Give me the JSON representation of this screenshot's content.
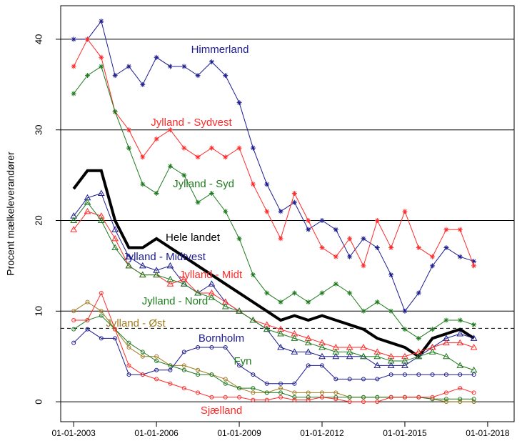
{
  "chart_data": {
    "type": "line",
    "y_label": "Procent mælkeleverandører",
    "x": [
      2003,
      2003.5,
      2004,
      2004.5,
      2005,
      2005.5,
      2006,
      2006.5,
      2007,
      2007.5,
      2008,
      2008.5,
      2009,
      2009.5,
      2010,
      2010.5,
      2011,
      2011.5,
      2012,
      2012.5,
      2013,
      2013.5,
      2014,
      2014.5,
      2015,
      2015.5,
      2016,
      2016.5,
      2017,
      2017.5
    ],
    "xlim": [
      2002.53,
      2018.96
    ],
    "xticks": [
      {
        "value": 2003,
        "label": "01-01-2003"
      },
      {
        "value": 2006,
        "label": "01-01-2006"
      },
      {
        "value": 2009,
        "label": "01-01-2009"
      },
      {
        "value": 2012,
        "label": "01-01-2012"
      },
      {
        "value": 2015,
        "label": "01-01-2015"
      },
      {
        "value": 2018,
        "label": "01-01-2018"
      }
    ],
    "ylim": [
      -2.2,
      43.7
    ],
    "yticks": [
      0,
      10,
      20,
      30,
      40
    ],
    "grid": true,
    "reference_line": 8.1,
    "series": [
      {
        "name": "Himmerland",
        "color": "#1c1c8f",
        "marker": "star",
        "values": [
          40,
          40,
          42,
          36,
          37,
          35,
          38,
          37,
          37,
          36,
          37.5,
          36,
          33,
          28,
          24,
          21,
          22,
          19,
          20,
          19,
          16,
          18,
          17,
          14,
          10,
          12,
          15,
          17,
          16,
          15.5
        ]
      },
      {
        "name": "Jylland - Sydvest",
        "color": "#ff2a2a",
        "marker": "star",
        "values": [
          37,
          40,
          38,
          32,
          30,
          27,
          29,
          30,
          28,
          27,
          28,
          27,
          28,
          24,
          21,
          18,
          23,
          20,
          17,
          16,
          18,
          15,
          20,
          17,
          21,
          17,
          16,
          19,
          19,
          15
        ]
      },
      {
        "name": "Jylland - Syd",
        "color": "#1f7a1f",
        "marker": "star",
        "values": [
          34,
          36,
          37,
          32,
          28,
          24,
          23,
          26,
          25,
          22,
          23,
          21,
          18,
          14,
          12,
          11,
          12,
          11,
          12,
          13,
          12,
          10,
          11,
          10,
          8,
          7,
          8,
          9,
          9,
          8.5
        ]
      },
      {
        "name": "Hele landet",
        "color": "#000000",
        "marker": "none",
        "values": [
          23.5,
          25.5,
          25.5,
          20,
          17,
          17,
          18,
          17,
          16,
          15,
          14,
          13,
          12,
          11,
          10,
          9,
          9.5,
          9,
          9.5,
          9,
          8.5,
          8,
          7,
          6.5,
          6,
          5,
          7,
          7.5,
          8,
          7
        ]
      },
      {
        "name": "Jylland - Midtvest",
        "color": "#1c1c8f",
        "marker": "triangle",
        "values": [
          20.5,
          22.5,
          23,
          19,
          16,
          15,
          14.5,
          15,
          13,
          12,
          13,
          11,
          10,
          9,
          8,
          6,
          5.5,
          5.5,
          5,
          5,
          5,
          5,
          4,
          4,
          4,
          5,
          6,
          7,
          7.5,
          7
        ]
      },
      {
        "name": "Jylland - Midt",
        "color": "#ff2a2a",
        "marker": "triangle",
        "values": [
          19,
          21,
          20.5,
          18,
          15,
          14,
          14,
          13,
          13.5,
          12,
          12,
          11,
          10,
          9,
          8.5,
          8,
          7.5,
          7,
          6.5,
          6,
          6,
          6,
          5.5,
          5,
          5,
          5.5,
          6,
          6.5,
          6.5,
          6
        ]
      },
      {
        "name": "Jylland - Nord",
        "color": "#1f7a1f",
        "marker": "triangle",
        "values": [
          20,
          22,
          20,
          17,
          15,
          14,
          14,
          13.5,
          13,
          12,
          11.5,
          10.5,
          10,
          9,
          8,
          7.5,
          7,
          6.5,
          6,
          5.5,
          5.5,
          5,
          5,
          4.5,
          4.5,
          5,
          5.5,
          5,
          4,
          3.5
        ]
      },
      {
        "name": "Jylland - Øst",
        "color": "#a07a20",
        "marker": "circle",
        "values": [
          10,
          11,
          10,
          8,
          6,
          5,
          5,
          4,
          4,
          3.5,
          3,
          2.5,
          1.5,
          1,
          1,
          1.5,
          1,
          1,
          1,
          1,
          0.5,
          0.5,
          0.5,
          0.5,
          0.5,
          0.5,
          0.3,
          0,
          0,
          0
        ]
      },
      {
        "name": "Bornholm",
        "color": "#1c1c8f",
        "marker": "circle",
        "values": [
          6.5,
          8,
          7,
          7,
          3,
          3,
          3.5,
          3.5,
          5.5,
          6,
          6,
          6,
          4,
          3,
          2,
          2,
          2,
          4,
          4,
          2.5,
          2.5,
          2.5,
          2.5,
          3,
          3,
          3,
          3,
          3,
          3,
          3
        ]
      },
      {
        "name": "Fyn",
        "color": "#1f7a1f",
        "marker": "circle",
        "values": [
          8,
          9,
          9.5,
          8,
          6.5,
          5.5,
          4.5,
          4,
          3.5,
          3,
          3,
          2,
          1.5,
          1.5,
          1,
          1,
          0.5,
          0.5,
          0.5,
          0.5,
          0.5,
          0.5,
          0.5,
          0.5,
          0.5,
          0.5,
          0.3,
          0.3,
          0.3,
          0.3
        ]
      },
      {
        "name": "Sjælland",
        "color": "#ff2a2a",
        "marker": "circle",
        "values": [
          9,
          9,
          12,
          8,
          4,
          3,
          2.5,
          2,
          1.5,
          1,
          0.5,
          0.5,
          0.5,
          0.2,
          0.2,
          0.5,
          0.2,
          0.2,
          0.5,
          0.3,
          0,
          0,
          0,
          0.5,
          0.5,
          0.5,
          0.5,
          1,
          1.5,
          1
        ]
      }
    ]
  }
}
